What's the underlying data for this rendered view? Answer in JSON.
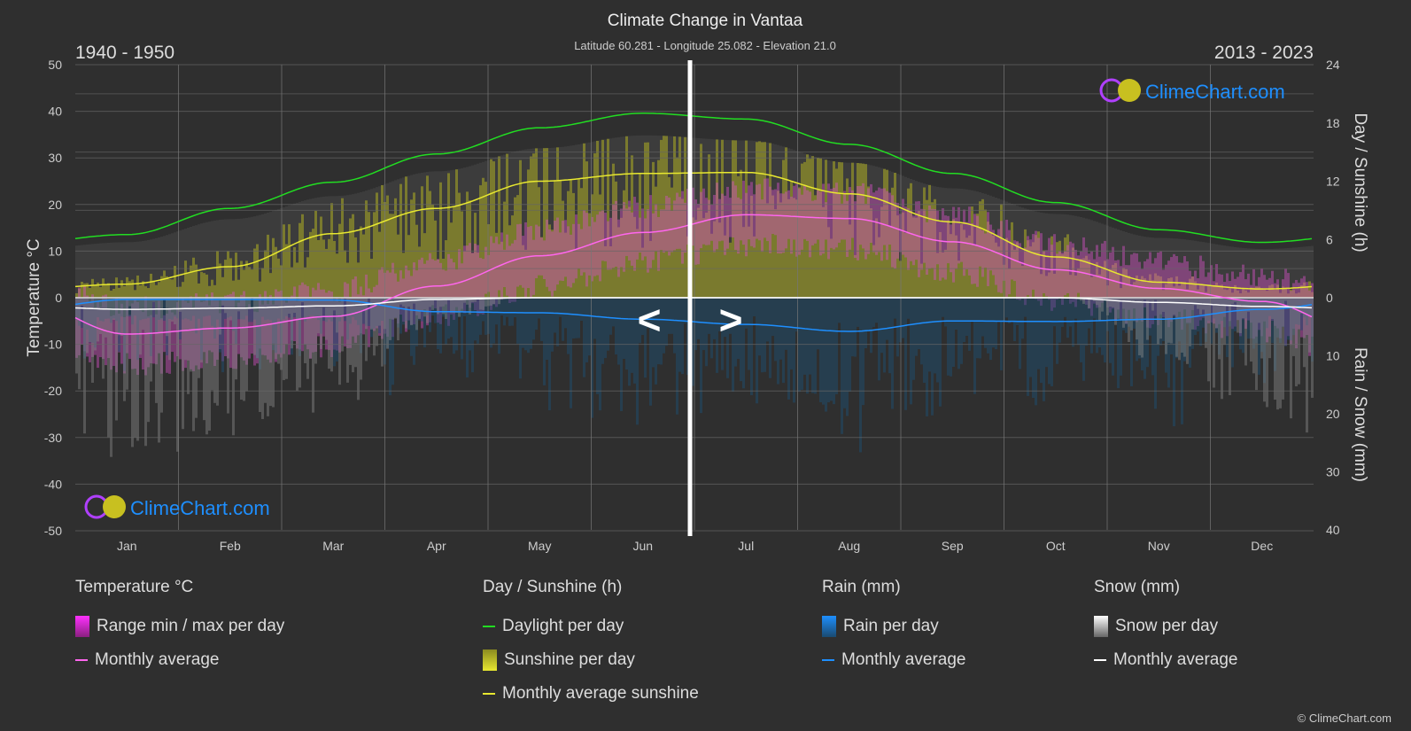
{
  "title": "Climate Change in Vantaa",
  "subtitle": "Latitude 60.281 - Longitude 25.082 - Elevation 21.0",
  "period_left": "1940 - 1950",
  "period_right": "2013 - 2023",
  "brand": "ClimeChart.com",
  "copyright": "© ClimeChart.com",
  "nav": {
    "prev": "<",
    "next": ">"
  },
  "colors": {
    "background": "#2f2f2f",
    "daylight": "#22dd22",
    "sunshine": "#e8e830",
    "temperature": "#ff66ee",
    "rain": "#1e8fff",
    "snow": "#ffffff",
    "brand": "#1e8fff"
  },
  "chart_data": {
    "type": "line",
    "title": "Climate Change in Vantaa",
    "categories": [
      "Jan",
      "Feb",
      "Mar",
      "Apr",
      "May",
      "Jun",
      "Jul",
      "Aug",
      "Sep",
      "Oct",
      "Nov",
      "Dec"
    ],
    "y_left": {
      "label": "Temperature °C",
      "range": [
        -50,
        50
      ],
      "ticks": [
        "50",
        "40",
        "30",
        "20",
        "10",
        "0",
        "-10",
        "-20",
        "-30",
        "-40",
        "-50"
      ]
    },
    "y_right_top": {
      "label": "Day / Sunshine (h)",
      "range": [
        0,
        24
      ],
      "ticks": [
        "24",
        "18",
        "12",
        "6",
        "0"
      ]
    },
    "y_right_bottom": {
      "label": "Rain / Snow (mm)",
      "range": [
        0,
        40
      ],
      "ticks": [
        "10",
        "20",
        "30",
        "40"
      ]
    },
    "grid": true,
    "series": [
      {
        "name": "Daylight per day",
        "axis": "hours",
        "values": [
          6.5,
          9.2,
          11.9,
          14.8,
          17.5,
          19.0,
          18.4,
          15.8,
          12.8,
          9.8,
          7.0,
          5.7
        ]
      },
      {
        "name": "Monthly average sunshine",
        "axis": "hours",
        "values": [
          1.4,
          3.2,
          6.6,
          9.2,
          12.0,
          12.8,
          12.9,
          10.7,
          7.8,
          4.2,
          1.6,
          0.9
        ]
      },
      {
        "name": "Temperature monthly average",
        "axis": "temperature",
        "values": [
          -7.8,
          -6.5,
          -4.0,
          2.5,
          9.0,
          14.0,
          17.8,
          17.0,
          12.0,
          6.0,
          2.0,
          -0.8
        ]
      },
      {
        "name": "Rain monthly average",
        "axis": "mm",
        "values": [
          0.3,
          0.3,
          0.4,
          2.4,
          2.6,
          3.7,
          4.6,
          5.8,
          4.0,
          4.1,
          3.7,
          2.0
        ]
      },
      {
        "name": "Snow monthly average",
        "axis": "mm",
        "values": [
          2.0,
          1.8,
          1.4,
          0.3,
          0,
          0,
          0,
          0,
          0,
          0,
          0.8,
          1.5
        ]
      }
    ]
  },
  "legend": {
    "temperature": {
      "heading": "Temperature °C",
      "items": [
        "Range min / max per day",
        "Monthly average"
      ]
    },
    "sunshine": {
      "heading": "Day / Sunshine (h)",
      "items": [
        "Daylight per day",
        "Sunshine per day",
        "Monthly average sunshine"
      ]
    },
    "rain": {
      "heading": "Rain (mm)",
      "items": [
        "Rain per day",
        "Monthly average"
      ]
    },
    "snow": {
      "heading": "Snow (mm)",
      "items": [
        "Snow per day",
        "Monthly average"
      ]
    }
  }
}
